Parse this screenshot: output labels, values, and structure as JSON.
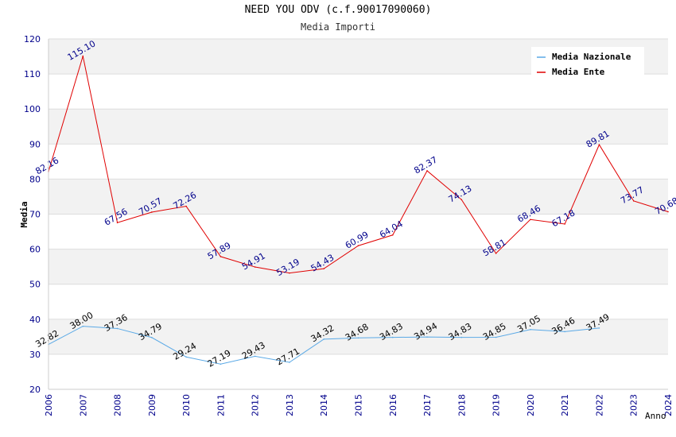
{
  "chart_data": {
    "type": "line",
    "title": "NEED YOU ODV (c.f.90017090060)",
    "subtitle": "Media Importi",
    "xlabel": "Anno",
    "ylabel": "Media",
    "ylim": [
      20,
      120
    ],
    "yticks": [
      "20",
      "30",
      "40",
      "50",
      "60",
      "70",
      "80",
      "90",
      "100",
      "110",
      "120"
    ],
    "categories": [
      "2006",
      "2007",
      "2008",
      "2009",
      "2010",
      "2011",
      "2012",
      "2013",
      "2014",
      "2015",
      "2016",
      "2017",
      "2018",
      "2019",
      "2020",
      "2021",
      "2022",
      "2023",
      "2024"
    ],
    "legend": {
      "position": "top-right"
    },
    "series": [
      {
        "name": "Media Nazionale",
        "color": "#5aa9e6",
        "values": [
          32.82,
          38.0,
          37.36,
          34.79,
          29.24,
          27.19,
          29.43,
          27.71,
          34.32,
          34.68,
          34.83,
          34.94,
          34.83,
          34.85,
          37.05,
          36.46,
          37.49,
          null,
          null
        ],
        "labels": [
          "32.82",
          "38.00",
          "37.36",
          "34.79",
          "29.24",
          "27.19",
          "29.43",
          "27.71",
          "34.32",
          "34.68",
          "34.83",
          "34.94",
          "34.83",
          "34.85",
          "37.05",
          "36.46",
          "37.49",
          null,
          null
        ]
      },
      {
        "name": "Media Ente",
        "color": "#e00000",
        "values": [
          82.16,
          115.1,
          67.56,
          70.57,
          72.26,
          57.89,
          54.91,
          53.19,
          54.43,
          60.99,
          64.04,
          82.37,
          74.13,
          58.81,
          68.46,
          67.18,
          89.81,
          73.77,
          70.68
        ],
        "labels": [
          "82.16",
          "115.10",
          "67.56",
          "70.57",
          "72.26",
          "57.89",
          "54.91",
          "53.19",
          "54.43",
          "60.99",
          "64.04",
          "82.37",
          "74.13",
          "58.81",
          "68.46",
          "67.18",
          "89.81",
          "73.77",
          "70.68"
        ]
      }
    ]
  }
}
